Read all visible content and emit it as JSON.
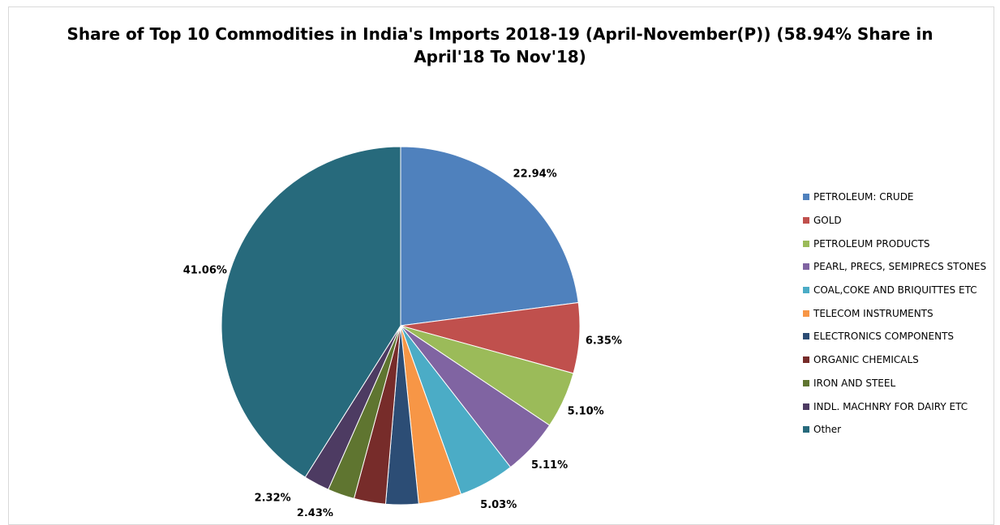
{
  "chart_data": {
    "type": "pie",
    "title_line1": "Share of Top 10 Commodities in India's Imports 2018-19 (April-November(P)) (58.94% Share in",
    "title_line2": "April'18 To Nov'18)",
    "legend_position": "right",
    "slices": [
      {
        "label": "PETROLEUM: CRUDE",
        "value": 22.94,
        "display": "22.94%",
        "color": "#4F81BD"
      },
      {
        "label": "GOLD",
        "value": 6.35,
        "display": "6.35%",
        "color": "#C0504D"
      },
      {
        "label": "PETROLEUM PRODUCTS",
        "value": 5.1,
        "display": "5.10%",
        "color": "#9BBB59"
      },
      {
        "label": "PEARL, PRECS, SEMIPRECS STONES",
        "value": 5.11,
        "display": "5.11%",
        "color": "#8064A2"
      },
      {
        "label": "COAL,COKE AND BRIQUITTES ETC",
        "value": 5.03,
        "display": "5.03%",
        "color": "#4BACC6"
      },
      {
        "label": "TELECOM INSTRUMENTS",
        "value": 3.86,
        "display": "3.86%",
        "color": "#F79646"
      },
      {
        "label": "ELECTRONICS COMPONENTS",
        "value": 2.95,
        "display": "2.95%",
        "color": "#2C4D75"
      },
      {
        "label": "ORGANIC CHEMICALS",
        "value": 2.85,
        "display": "2.85%",
        "color": "#772C2A"
      },
      {
        "label": "IRON AND STEEL",
        "value": 2.43,
        "display": "2.43%",
        "color": "#5F7530"
      },
      {
        "label": "INDL. MACHNRY FOR DAIRY ETC",
        "value": 2.32,
        "display": "2.32%",
        "color": "#4D3B62"
      },
      {
        "label": "Other",
        "value": 41.06,
        "display": "41.06%",
        "color": "#276A7C"
      }
    ]
  }
}
